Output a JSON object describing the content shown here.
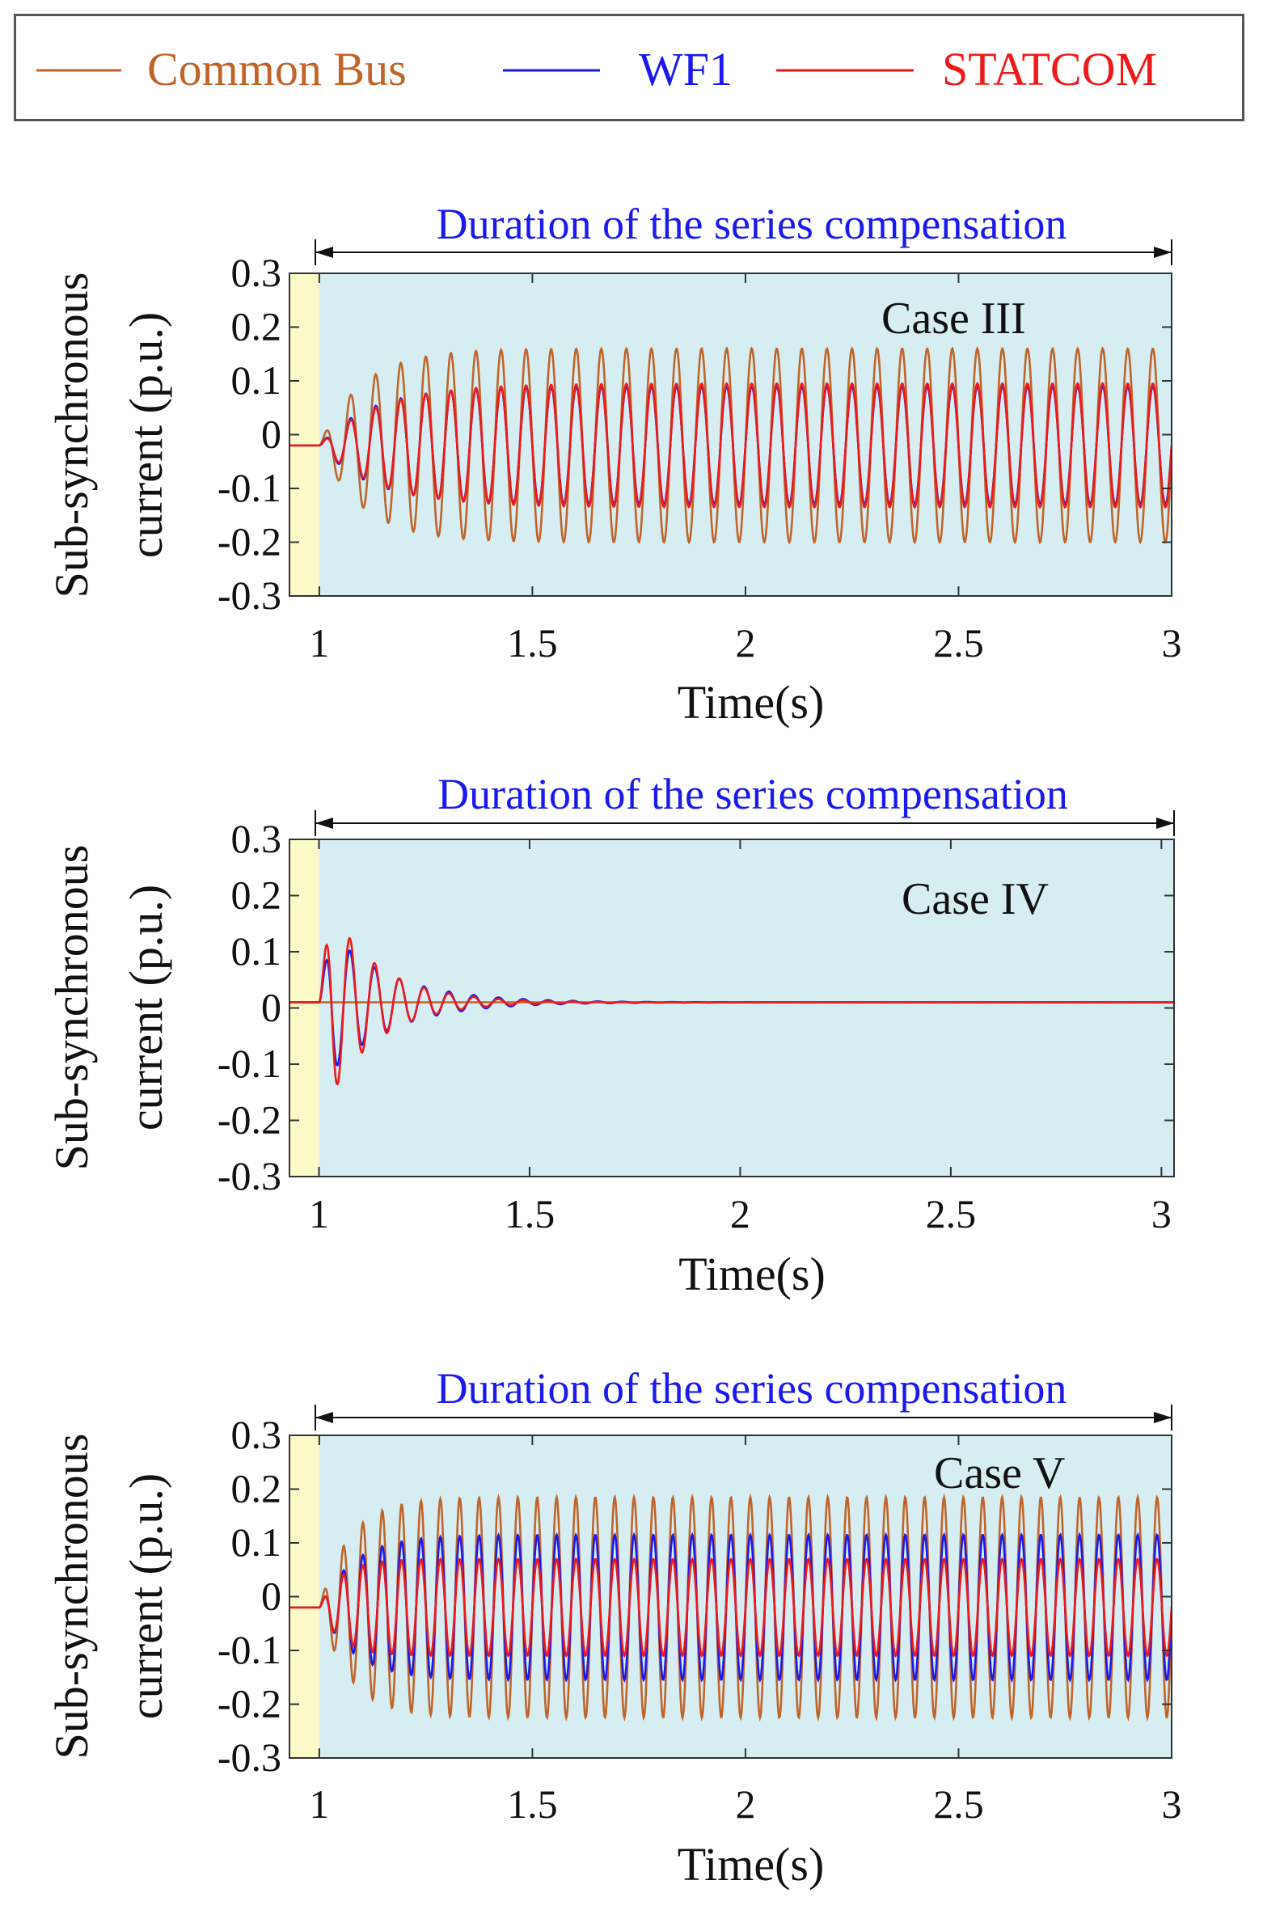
{
  "colors": {
    "common_bus": "#c0642a",
    "wf1": "#1a1aee",
    "statcom": "#ee1a1a",
    "plot_bg": "#d6eef2",
    "pre_comp_bg": "#fbfac8",
    "duration_text": "#1a1aee"
  },
  "legend": [
    {
      "name": "Common Bus",
      "color": "#c0642a"
    },
    {
      "name": "WF1",
      "color": "#1a1aee"
    },
    {
      "name": "STATCOM",
      "color": "#ee1a1a"
    }
  ],
  "chart_data": [
    {
      "type": "line",
      "case_label": "Case III",
      "annotation": "Duration of the series compensation",
      "xlabel": "Time(s)",
      "ylabel_line1": "Sub-synchronous",
      "ylabel_line2": "current  (p.u.)",
      "xlim": [
        0.93,
        3.0
      ],
      "ylim": [
        -0.3,
        0.3
      ],
      "x_ticks": [
        "1",
        "1.5",
        "2",
        "2.5",
        "3"
      ],
      "y_ticks": [
        "0.3",
        "0.2",
        "0.1",
        "0",
        "-0.1",
        "-0.2",
        "-0.3"
      ],
      "compensation_start": 1.0,
      "compensation_end": 3.0,
      "series": [
        {
          "name": "Common Bus",
          "offset": -0.02,
          "amplitude": 0.18,
          "freq_hz": 17,
          "growth": "rise",
          "tau": 0.1
        },
        {
          "name": "WF1",
          "offset": -0.02,
          "amplitude": 0.11,
          "freq_hz": 17,
          "growth": "rise",
          "tau": 0.12
        },
        {
          "name": "STATCOM",
          "offset": -0.02,
          "amplitude": 0.115,
          "freq_hz": 17,
          "growth": "rise",
          "tau": 0.14
        }
      ]
    },
    {
      "type": "line",
      "case_label": "Case IV",
      "annotation": "Duration of the series compensation",
      "xlabel": "Time(s)",
      "ylabel_line1": "Sub-synchronous",
      "ylabel_line2": "current (p.u.)",
      "xlim": [
        0.93,
        3.03
      ],
      "ylim": [
        -0.3,
        0.3
      ],
      "x_ticks": [
        "1",
        "1.5",
        "2",
        "2.5",
        "3"
      ],
      "y_ticks": [
        "0.3",
        "0.2",
        "0.1",
        "0",
        "-0.1",
        "-0.2",
        "-0.3"
      ],
      "compensation_start": 1.0,
      "compensation_end": 3.0,
      "series": [
        {
          "name": "Common Bus",
          "offset": 0.01,
          "amplitude": 0.0,
          "freq_hz": 17,
          "growth": "decay",
          "tau": 0.12
        },
        {
          "name": "WF1",
          "offset": 0.01,
          "amplitude": 0.15,
          "freq_hz": 17,
          "growth": "decay",
          "tau": 0.15
        },
        {
          "name": "STATCOM",
          "offset": 0.01,
          "amplitude": 0.21,
          "freq_hz": 17,
          "growth": "decay",
          "tau": 0.12
        }
      ]
    },
    {
      "type": "line",
      "case_label": "Case V",
      "annotation": "Duration of the series compensation",
      "xlabel": "Time(s)",
      "ylabel_line1": "Sub-synchronous",
      "ylabel_line2": "current (p.u.)",
      "xlim": [
        0.93,
        3.0
      ],
      "ylim": [
        -0.3,
        0.3
      ],
      "x_ticks": [
        "1",
        "1.5",
        "2",
        "2.5",
        "3"
      ],
      "y_ticks": [
        "0.3",
        "0.2",
        "0.1",
        "0",
        "-0.1",
        "-0.2",
        "-0.3"
      ],
      "compensation_start": 1.0,
      "compensation_end": 3.0,
      "series": [
        {
          "name": "Common Bus",
          "offset": -0.02,
          "amplitude": 0.205,
          "freq_hz": 22,
          "growth": "rise",
          "tau": 0.07
        },
        {
          "name": "WF1",
          "offset": -0.02,
          "amplitude": 0.135,
          "freq_hz": 22,
          "growth": "rise",
          "tau": 0.08
        },
        {
          "name": "STATCOM",
          "offset": -0.02,
          "amplitude": 0.09,
          "freq_hz": 22,
          "growth": "rise",
          "tau": 0.05
        }
      ]
    }
  ]
}
